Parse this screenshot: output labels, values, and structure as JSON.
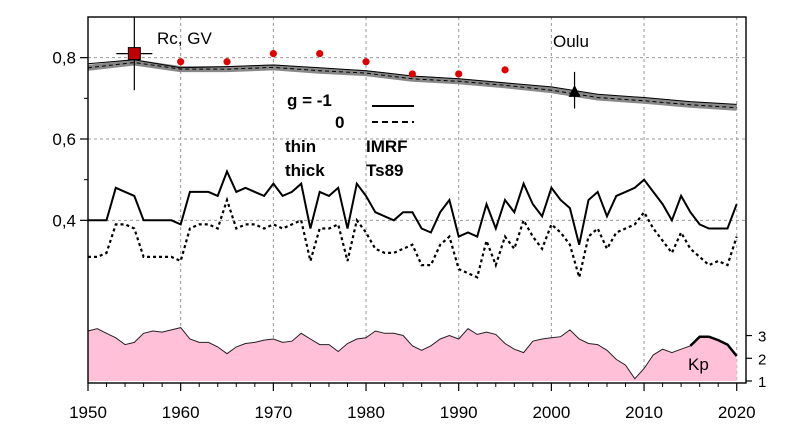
{
  "chart_data": {
    "type": "line",
    "title": "",
    "xlabel": "",
    "ylabel": "",
    "xlim": [
      1950,
      2021
    ],
    "ylim": [
      0.0,
      0.9
    ],
    "x_ticks": [
      1950,
      1960,
      1970,
      1980,
      1990,
      2000,
      2010,
      2020
    ],
    "y_ticks": [
      0.4,
      0.6,
      0.8
    ],
    "y_tick_labels": [
      "0,4",
      "0,6",
      "0,8"
    ],
    "grid": true,
    "annotations": {
      "rc_label": "Rc, GV",
      "station": "Oulu",
      "kp_label": "Kp",
      "legend_g": "g  = -1",
      "legend_zero": "0",
      "legend_thin": "thin",
      "legend_thick": "thick",
      "legend_imrf": "IMRF",
      "legend_ts89": "Ts89"
    },
    "kp_axis": {
      "ticks": [
        "3",
        "2",
        "1"
      ],
      "range": [
        1,
        3.2
      ]
    },
    "points": {
      "x": [
        1955,
        1960,
        1965,
        1970,
        1975,
        1980,
        1985,
        1990,
        1995
      ],
      "y": [
        0.81,
        0.79,
        0.79,
        0.81,
        0.81,
        0.79,
        0.76,
        0.76,
        0.77
      ],
      "square": {
        "x": 1955,
        "y": 0.81,
        "yerr": [
          0.72,
          0.9
        ]
      },
      "triangle": {
        "x": 2002.5,
        "y": 0.716,
        "yerr": [
          0.675,
          0.765
        ]
      }
    },
    "rc_curves": {
      "x": [
        1950,
        1955,
        1960,
        1965,
        1970,
        1975,
        1980,
        1985,
        1990,
        1995,
        2000,
        2005,
        2010,
        2015,
        2020
      ],
      "thin_imrf": [
        0.785,
        0.795,
        0.775,
        0.778,
        0.782,
        0.775,
        0.768,
        0.755,
        0.748,
        0.738,
        0.728,
        0.71,
        0.702,
        0.692,
        0.685
      ],
      "thick_ts89": [
        0.775,
        0.788,
        0.772,
        0.772,
        0.776,
        0.768,
        0.762,
        0.748,
        0.742,
        0.732,
        0.72,
        0.702,
        0.694,
        0.684,
        0.677
      ]
    },
    "series": [
      {
        "x": [
          1950,
          1951,
          1952,
          1953,
          1954,
          1955,
          1956,
          1957,
          1958,
          1959,
          1960,
          1961,
          1962,
          1963,
          1964,
          1965,
          1966,
          1967,
          1968,
          1969,
          1970,
          1971,
          1972,
          1973,
          1974,
          1975,
          1976,
          1977,
          1978,
          1979,
          1980,
          1981,
          1982,
          1983,
          1984,
          1985,
          1986,
          1987,
          1988,
          1989,
          1990,
          1991,
          1992,
          1993,
          1994,
          1995,
          1996,
          1997,
          1998,
          1999,
          2000,
          2001,
          2002,
          2003,
          2004,
          2005,
          2006,
          2007,
          2008,
          2009,
          2010,
          2011,
          2012,
          2013,
          2014,
          2015,
          2016,
          2017,
          2018,
          2019,
          2020
        ],
        "values": [
          0.4,
          0.4,
          0.4,
          0.48,
          0.47,
          0.46,
          0.4,
          0.4,
          0.4,
          0.4,
          0.39,
          0.47,
          0.47,
          0.47,
          0.46,
          0.52,
          0.47,
          0.48,
          0.47,
          0.46,
          0.49,
          0.46,
          0.47,
          0.49,
          0.38,
          0.47,
          0.46,
          0.48,
          0.38,
          0.49,
          0.46,
          0.42,
          0.41,
          0.4,
          0.42,
          0.42,
          0.38,
          0.37,
          0.42,
          0.45,
          0.36,
          0.37,
          0.36,
          0.44,
          0.38,
          0.45,
          0.42,
          0.49,
          0.44,
          0.41,
          0.48,
          0.45,
          0.43,
          0.34,
          0.45,
          0.47,
          0.41,
          0.46,
          0.47,
          0.48,
          0.5,
          0.47,
          0.44,
          0.4,
          0.46,
          0.42,
          0.39,
          0.38,
          0.38,
          0.38,
          0.44
        ]
      },
      {
        "x": [
          1950,
          1951,
          1952,
          1953,
          1954,
          1955,
          1956,
          1957,
          1958,
          1959,
          1960,
          1961,
          1962,
          1963,
          1964,
          1965,
          1966,
          1967,
          1968,
          1969,
          1970,
          1971,
          1972,
          1973,
          1974,
          1975,
          1976,
          1977,
          1978,
          1979,
          1980,
          1981,
          1982,
          1983,
          1984,
          1985,
          1986,
          1987,
          1988,
          1989,
          1990,
          1991,
          1992,
          1993,
          1994,
          1995,
          1996,
          1997,
          1998,
          1999,
          2000,
          2001,
          2002,
          2003,
          2004,
          2005,
          2006,
          2007,
          2008,
          2009,
          2010,
          2011,
          2012,
          2013,
          2014,
          2015,
          2016,
          2017,
          2018,
          2019,
          2020
        ],
        "values": [
          0.31,
          0.31,
          0.32,
          0.39,
          0.39,
          0.38,
          0.31,
          0.31,
          0.31,
          0.31,
          0.3,
          0.38,
          0.39,
          0.39,
          0.38,
          0.45,
          0.38,
          0.39,
          0.39,
          0.38,
          0.39,
          0.38,
          0.39,
          0.4,
          0.3,
          0.38,
          0.38,
          0.39,
          0.3,
          0.4,
          0.37,
          0.33,
          0.32,
          0.32,
          0.33,
          0.34,
          0.29,
          0.29,
          0.34,
          0.36,
          0.28,
          0.27,
          0.26,
          0.35,
          0.29,
          0.36,
          0.33,
          0.4,
          0.36,
          0.33,
          0.39,
          0.37,
          0.34,
          0.26,
          0.36,
          0.38,
          0.33,
          0.37,
          0.38,
          0.39,
          0.42,
          0.38,
          0.35,
          0.32,
          0.37,
          0.33,
          0.31,
          0.29,
          0.3,
          0.29,
          0.36
        ]
      }
    ],
    "kp_series": {
      "x": [
        1950,
        1951,
        1952,
        1953,
        1954,
        1955,
        1956,
        1957,
        1958,
        1959,
        1960,
        1961,
        1962,
        1963,
        1964,
        1965,
        1966,
        1967,
        1968,
        1969,
        1970,
        1971,
        1972,
        1973,
        1974,
        1975,
        1976,
        1977,
        1978,
        1979,
        1980,
        1981,
        1982,
        1983,
        1984,
        1985,
        1986,
        1987,
        1988,
        1989,
        1990,
        1991,
        1992,
        1993,
        1994,
        1995,
        1996,
        1997,
        1998,
        1999,
        2000,
        2001,
        2002,
        2003,
        2004,
        2005,
        2006,
        2007,
        2008,
        2009,
        2010,
        2011,
        2012,
        2013,
        2014,
        2015,
        2016,
        2017,
        2018,
        2019,
        2020
      ],
      "values": [
        3.2,
        3.3,
        3.1,
        2.9,
        2.6,
        2.7,
        3.1,
        3.2,
        3.15,
        3.25,
        3.35,
        2.85,
        2.7,
        2.7,
        2.5,
        2.2,
        2.5,
        2.65,
        2.7,
        2.8,
        2.85,
        2.7,
        2.75,
        3.1,
        2.85,
        2.6,
        2.6,
        2.3,
        2.65,
        2.85,
        2.9,
        3.2,
        3.1,
        3.1,
        3.0,
        2.55,
        2.35,
        2.55,
        2.85,
        3.0,
        2.85,
        3.3,
        3.05,
        3.15,
        3.05,
        2.65,
        2.4,
        2.25,
        2.75,
        2.85,
        2.9,
        2.95,
        3.25,
        2.85,
        2.65,
        2.6,
        2.35,
        1.95,
        1.7,
        1.1,
        1.55,
        2.15,
        2.4,
        2.25,
        2.4,
        2.55,
        2.95,
        2.95,
        2.8,
        2.6,
        2.1
      ]
    }
  }
}
